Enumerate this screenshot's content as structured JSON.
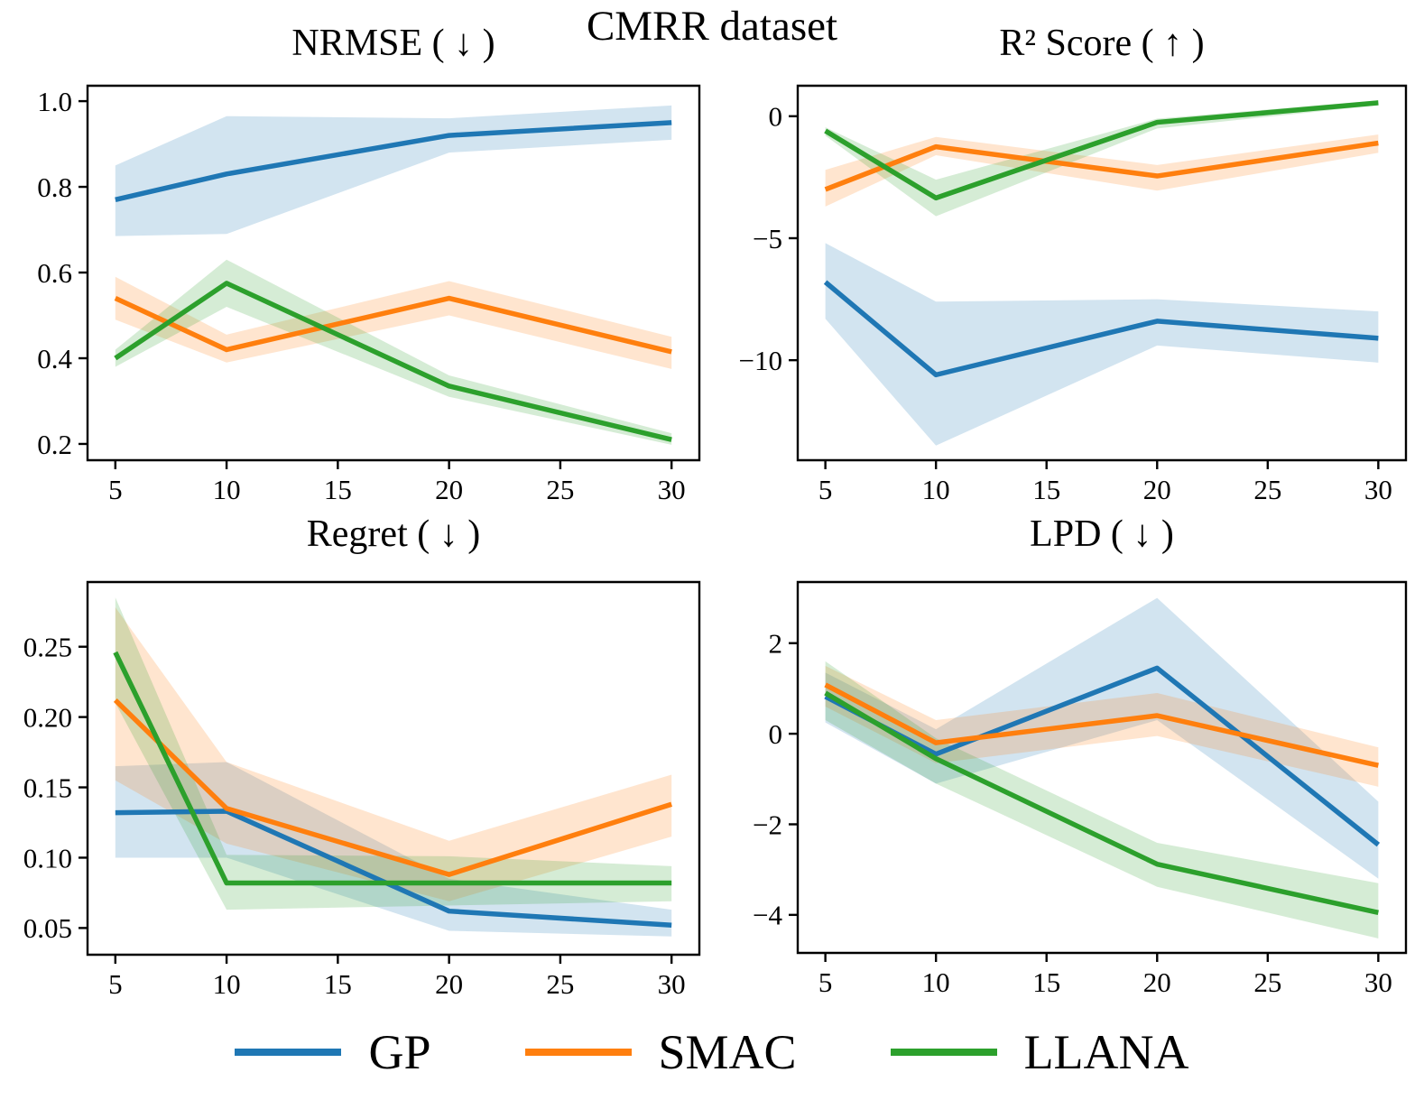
{
  "suptitle": "CMRR dataset",
  "legend": [
    {
      "label": "GP",
      "color": "#1f77b4"
    },
    {
      "label": "SMAC",
      "color": "#ff7f0e"
    },
    {
      "label": "LLANA",
      "color": "#2ca02c"
    }
  ],
  "band_note": "shaded regions are +/- std confidence bands at 0.2 alpha",
  "chart_data": [
    {
      "type": "line",
      "title": "NRMSE ( ↓ )",
      "x": [
        5,
        10,
        20,
        30
      ],
      "xlim": [
        3.75,
        31.25
      ],
      "xticks": [
        5,
        10,
        15,
        20,
        25,
        30
      ],
      "xtick_labels": [
        "5",
        "10",
        "15",
        "20",
        "25",
        "30"
      ],
      "ylim": [
        0.162,
        1.036
      ],
      "yticks": [
        0.2,
        0.4,
        0.6,
        0.8,
        1.0
      ],
      "ytick_labels": [
        "0.2",
        "0.4",
        "0.6",
        "0.8",
        "1.0"
      ],
      "grid": false,
      "series": [
        {
          "name": "GP",
          "color": "#1f77b4",
          "values": [
            0.77,
            0.83,
            0.92,
            0.95
          ],
          "lo": [
            0.685,
            0.69,
            0.88,
            0.91
          ],
          "hi": [
            0.85,
            0.965,
            0.96,
            0.99
          ]
        },
        {
          "name": "SMAC",
          "color": "#ff7f0e",
          "values": [
            0.54,
            0.42,
            0.54,
            0.415
          ],
          "lo": [
            0.49,
            0.39,
            0.5,
            0.375
          ],
          "hi": [
            0.59,
            0.455,
            0.58,
            0.45
          ]
        },
        {
          "name": "LLANA",
          "color": "#2ca02c",
          "values": [
            0.4,
            0.575,
            0.335,
            0.21
          ],
          "lo": [
            0.38,
            0.52,
            0.31,
            0.198
          ],
          "hi": [
            0.42,
            0.63,
            0.36,
            0.225
          ]
        }
      ]
    },
    {
      "type": "line",
      "title": "R² Score ( ↑ )",
      "x": [
        5,
        10,
        20,
        30
      ],
      "xlim": [
        3.75,
        31.25
      ],
      "xticks": [
        5,
        10,
        15,
        20,
        25,
        30
      ],
      "xtick_labels": [
        "5",
        "10",
        "15",
        "20",
        "25",
        "30"
      ],
      "ylim": [
        -14.1,
        1.25
      ],
      "yticks": [
        0,
        -5,
        -10
      ],
      "ytick_labels": [
        "0",
        "−5",
        "−10"
      ],
      "grid": false,
      "series": [
        {
          "name": "GP",
          "color": "#1f77b4",
          "values": [
            -6.8,
            -10.6,
            -8.4,
            -9.1
          ],
          "lo": [
            -8.3,
            -13.5,
            -9.4,
            -10.1
          ],
          "hi": [
            -5.2,
            -7.6,
            -7.5,
            -8.0
          ]
        },
        {
          "name": "SMAC",
          "color": "#ff7f0e",
          "values": [
            -3.0,
            -1.25,
            -2.45,
            -1.1
          ],
          "lo": [
            -3.7,
            -1.6,
            -3.05,
            -1.5
          ],
          "hi": [
            -2.2,
            -0.85,
            -2.0,
            -0.75
          ]
        },
        {
          "name": "LLANA",
          "color": "#2ca02c",
          "values": [
            -0.6,
            -3.35,
            -0.25,
            0.55
          ],
          "lo": [
            -0.8,
            -4.1,
            -0.5,
            0.45
          ],
          "hi": [
            -0.45,
            -2.6,
            -0.1,
            0.65
          ]
        }
      ]
    },
    {
      "type": "line",
      "title": "Regret ( ↓ )",
      "x": [
        5,
        10,
        20,
        30
      ],
      "xlim": [
        3.75,
        31.25
      ],
      "xticks": [
        5,
        10,
        15,
        20,
        25,
        30
      ],
      "xtick_labels": [
        "5",
        "10",
        "15",
        "20",
        "25",
        "30"
      ],
      "ylim": [
        0.031,
        0.296
      ],
      "yticks": [
        0.05,
        0.1,
        0.15,
        0.2,
        0.25
      ],
      "ytick_labels": [
        "0.05",
        "0.10",
        "0.15",
        "0.20",
        "0.25"
      ],
      "grid": false,
      "series": [
        {
          "name": "GP",
          "color": "#1f77b4",
          "values": [
            0.132,
            0.133,
            0.062,
            0.052
          ],
          "lo": [
            0.1,
            0.1,
            0.048,
            0.044
          ],
          "hi": [
            0.165,
            0.168,
            0.085,
            0.063
          ]
        },
        {
          "name": "SMAC",
          "color": "#ff7f0e",
          "values": [
            0.212,
            0.135,
            0.088,
            0.138
          ],
          "lo": [
            0.155,
            0.11,
            0.069,
            0.115
          ],
          "hi": [
            0.278,
            0.168,
            0.112,
            0.159
          ]
        },
        {
          "name": "LLANA",
          "color": "#2ca02c",
          "values": [
            0.246,
            0.082,
            0.082,
            0.082
          ],
          "lo": [
            0.21,
            0.063,
            0.066,
            0.069
          ],
          "hi": [
            0.285,
            0.102,
            0.101,
            0.094
          ]
        }
      ]
    },
    {
      "type": "line",
      "title": "LPD ( ↓ )",
      "x": [
        5,
        10,
        20,
        30
      ],
      "xlim": [
        3.75,
        31.25
      ],
      "xticks": [
        5,
        10,
        15,
        20,
        25,
        30
      ],
      "xtick_labels": [
        "5",
        "10",
        "15",
        "20",
        "25",
        "30"
      ],
      "ylim": [
        -4.84,
        3.35
      ],
      "yticks": [
        2,
        0,
        -2,
        -4
      ],
      "ytick_labels": [
        "2",
        "0",
        "−2",
        "−4"
      ],
      "grid": false,
      "series": [
        {
          "name": "GP",
          "color": "#1f77b4",
          "values": [
            0.82,
            -0.45,
            1.45,
            -2.45
          ],
          "lo": [
            0.25,
            -1.1,
            0.3,
            -3.2
          ],
          "hi": [
            1.35,
            0.1,
            3.0,
            -1.5
          ]
        },
        {
          "name": "SMAC",
          "color": "#ff7f0e",
          "values": [
            1.08,
            -0.2,
            0.4,
            -0.7
          ],
          "lo": [
            0.6,
            -0.65,
            -0.05,
            -1.17
          ],
          "hi": [
            1.5,
            0.3,
            0.9,
            -0.3
          ]
        },
        {
          "name": "LLANA",
          "color": "#2ca02c",
          "values": [
            0.9,
            -0.55,
            -2.88,
            -3.95
          ],
          "lo": [
            0.3,
            -1.1,
            -3.38,
            -4.52
          ],
          "hi": [
            1.6,
            -0.1,
            -2.41,
            -3.3
          ]
        }
      ]
    }
  ]
}
